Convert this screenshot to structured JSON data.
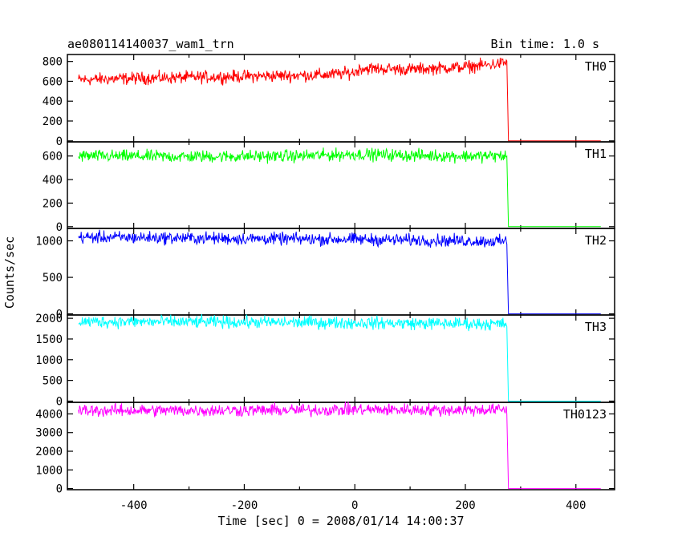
{
  "chart_data": {
    "type": "line",
    "title": "ae080114140037_wam1_trn",
    "subtitle": "Bin time: 1.0 s",
    "xlabel": "Time [sec] 0 = 2008/01/14 14:00:37",
    "ylabel": "Counts/sec",
    "xlim": [
      -520,
      470
    ],
    "xticks": [
      -400,
      -200,
      0,
      200,
      400
    ],
    "grid": false,
    "panels": [
      {
        "name": "TH0",
        "color": "#ff0000",
        "ylim": [
          -10,
          870
        ],
        "yticks": [
          0,
          200,
          400,
          600,
          800
        ],
        "series": [
          {
            "x": [
              -500,
              -400,
              -300,
              -200,
              -100,
              -50,
              0,
              10,
              100,
              200,
              250,
              275,
              278,
              445
            ],
            "y": [
              615,
              630,
              640,
              650,
              660,
              665,
              690,
              730,
              720,
              745,
              770,
              790,
              0,
              0
            ]
          }
        ]
      },
      {
        "name": "TH1",
        "color": "#00ff00",
        "ylim": [
          -15,
          720
        ],
        "yticks": [
          0,
          200,
          400,
          600
        ],
        "series": [
          {
            "x": [
              -500,
              -300,
              -100,
              0,
              100,
              200,
              275,
              278,
              445
            ],
            "y": [
              600,
              595,
              600,
              615,
              605,
              600,
              600,
              0,
              0
            ]
          }
        ]
      },
      {
        "name": "TH2",
        "color": "#0000ff",
        "ylim": [
          -15,
          1170
        ],
        "yticks": [
          0,
          500,
          1000
        ],
        "series": [
          {
            "x": [
              -500,
              -400,
              -200,
              0,
              100,
              200,
              275,
              278,
              445
            ],
            "y": [
              1050,
              1045,
              1030,
              1020,
              1010,
              1000,
              990,
              0,
              0
            ]
          }
        ]
      },
      {
        "name": "TH3",
        "color": "#00ffff",
        "ylim": [
          -30,
          2080
        ],
        "yticks": [
          0,
          500,
          1000,
          1500,
          2000
        ],
        "series": [
          {
            "x": [
              -500,
              -300,
              -100,
              0,
              100,
              200,
              275,
              278,
              445
            ],
            "y": [
              1920,
              1910,
              1900,
              1890,
              1880,
              1870,
              1860,
              0,
              0
            ]
          }
        ]
      },
      {
        "name": "TH0123",
        "color": "#ff00ff",
        "ylim": [
          -60,
          4620
        ],
        "yticks": [
          0,
          1000,
          2000,
          3000,
          4000
        ],
        "series": [
          {
            "x": [
              -500,
              -300,
              -100,
              0,
              100,
              200,
              275,
              278,
              445
            ],
            "y": [
              4180,
              4190,
              4200,
              4230,
              4220,
              4220,
              4230,
              0,
              0
            ]
          }
        ]
      }
    ]
  }
}
